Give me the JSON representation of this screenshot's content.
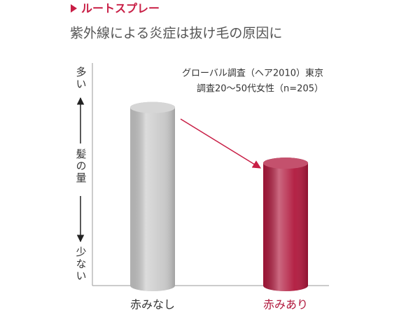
{
  "chart_data": {
    "type": "bar",
    "header": "ルートスプレー",
    "title": "紫外線による炎症は抜け毛の原因に",
    "annotation": [
      "グローバル調査（ヘア2010）東京",
      "調査20～50代女性（n=205）"
    ],
    "y_label_top": "多い",
    "y_label": "髪の量",
    "y_label_bottom": "少ない",
    "categories": [
      "赤みなし",
      "赤みあり"
    ],
    "values": [
      80,
      55
    ],
    "colors": [
      "#c9c9c9",
      "#b0173c"
    ],
    "ylim": [
      0,
      100
    ]
  }
}
